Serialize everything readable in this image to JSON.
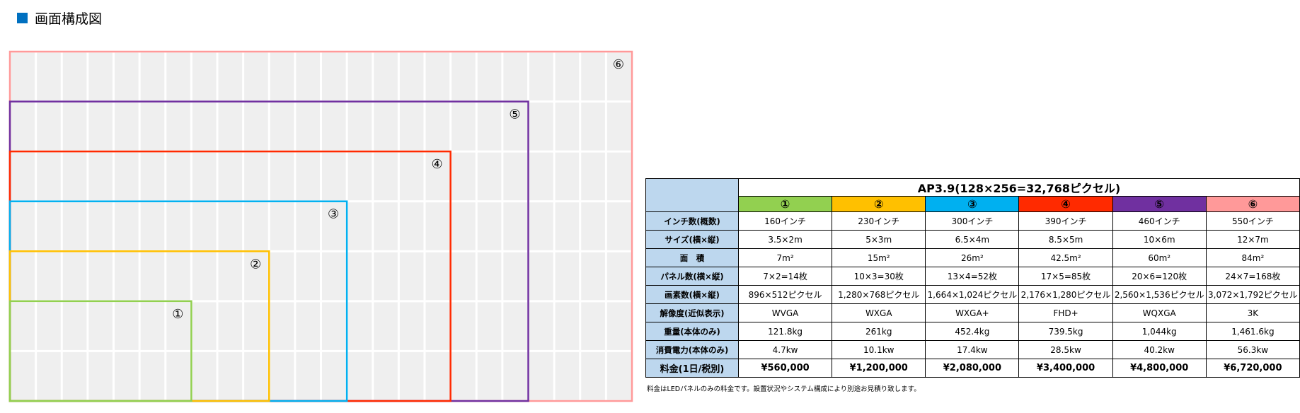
{
  "title": "画面構成図",
  "diagram": {
    "labels": [
      "①",
      "②",
      "③",
      "④",
      "⑤",
      "⑥"
    ],
    "colors": [
      "#92d050",
      "#ffc000",
      "#00b0f0",
      "#ff2a00",
      "#7030a0",
      "#ff9999"
    ]
  },
  "table": {
    "header": "AP3.9(128×256=32,768ピクセル)",
    "columns": [
      "①",
      "②",
      "③",
      "④",
      "⑤",
      "⑥"
    ],
    "rows": [
      [
        "インチ数(概数)",
        "160インチ",
        "230インチ",
        "300インチ",
        "390インチ",
        "460インチ",
        "550インチ"
      ],
      [
        "サイズ(横×縦)",
        "3.5×2m",
        "5×3m",
        "6.5×4m",
        "8.5×5m",
        "10×6m",
        "12×7m"
      ],
      [
        "面　積",
        "7m²",
        "15m²",
        "26m²",
        "42.5m²",
        "60m²",
        "84m²"
      ],
      [
        "パネル数(横×縦)",
        "7×2=14枚",
        "10×3=30枚",
        "13×4=52枚",
        "17×5=85枚",
        "20×6=120枚",
        "24×7=168枚"
      ],
      [
        "画素数(横×縦)",
        "896×512ピクセル",
        "1,280×768ピクセル",
        "1,664×1,024ピクセル",
        "2,176×1,280ピクセル",
        "2,560×1,536ピクセル",
        "3,072×1,792ピクセル"
      ],
      [
        "解像度(近似表示)",
        "WVGA",
        "WXGA",
        "WXGA+",
        "FHD+",
        "WQXGA",
        "3K"
      ],
      [
        "重量(本体のみ)",
        "121.8kg",
        "261kg",
        "452.4kg",
        "739.5kg",
        "1,044kg",
        "1,461.6kg"
      ],
      [
        "消費電力(本体のみ)",
        "4.7kw",
        "10.1kw",
        "17.4kw",
        "28.5kw",
        "40.2kw",
        "56.3kw"
      ],
      [
        "料金(1日/税別)",
        "¥560,000",
        "¥1,200,000",
        "¥2,080,000",
        "¥3,400,000",
        "¥4,800,000",
        "¥6,720,000"
      ]
    ],
    "note": "料金はLEDパネルのみの料金です。設置状況やシステム構成により別途お見積り致します。"
  }
}
